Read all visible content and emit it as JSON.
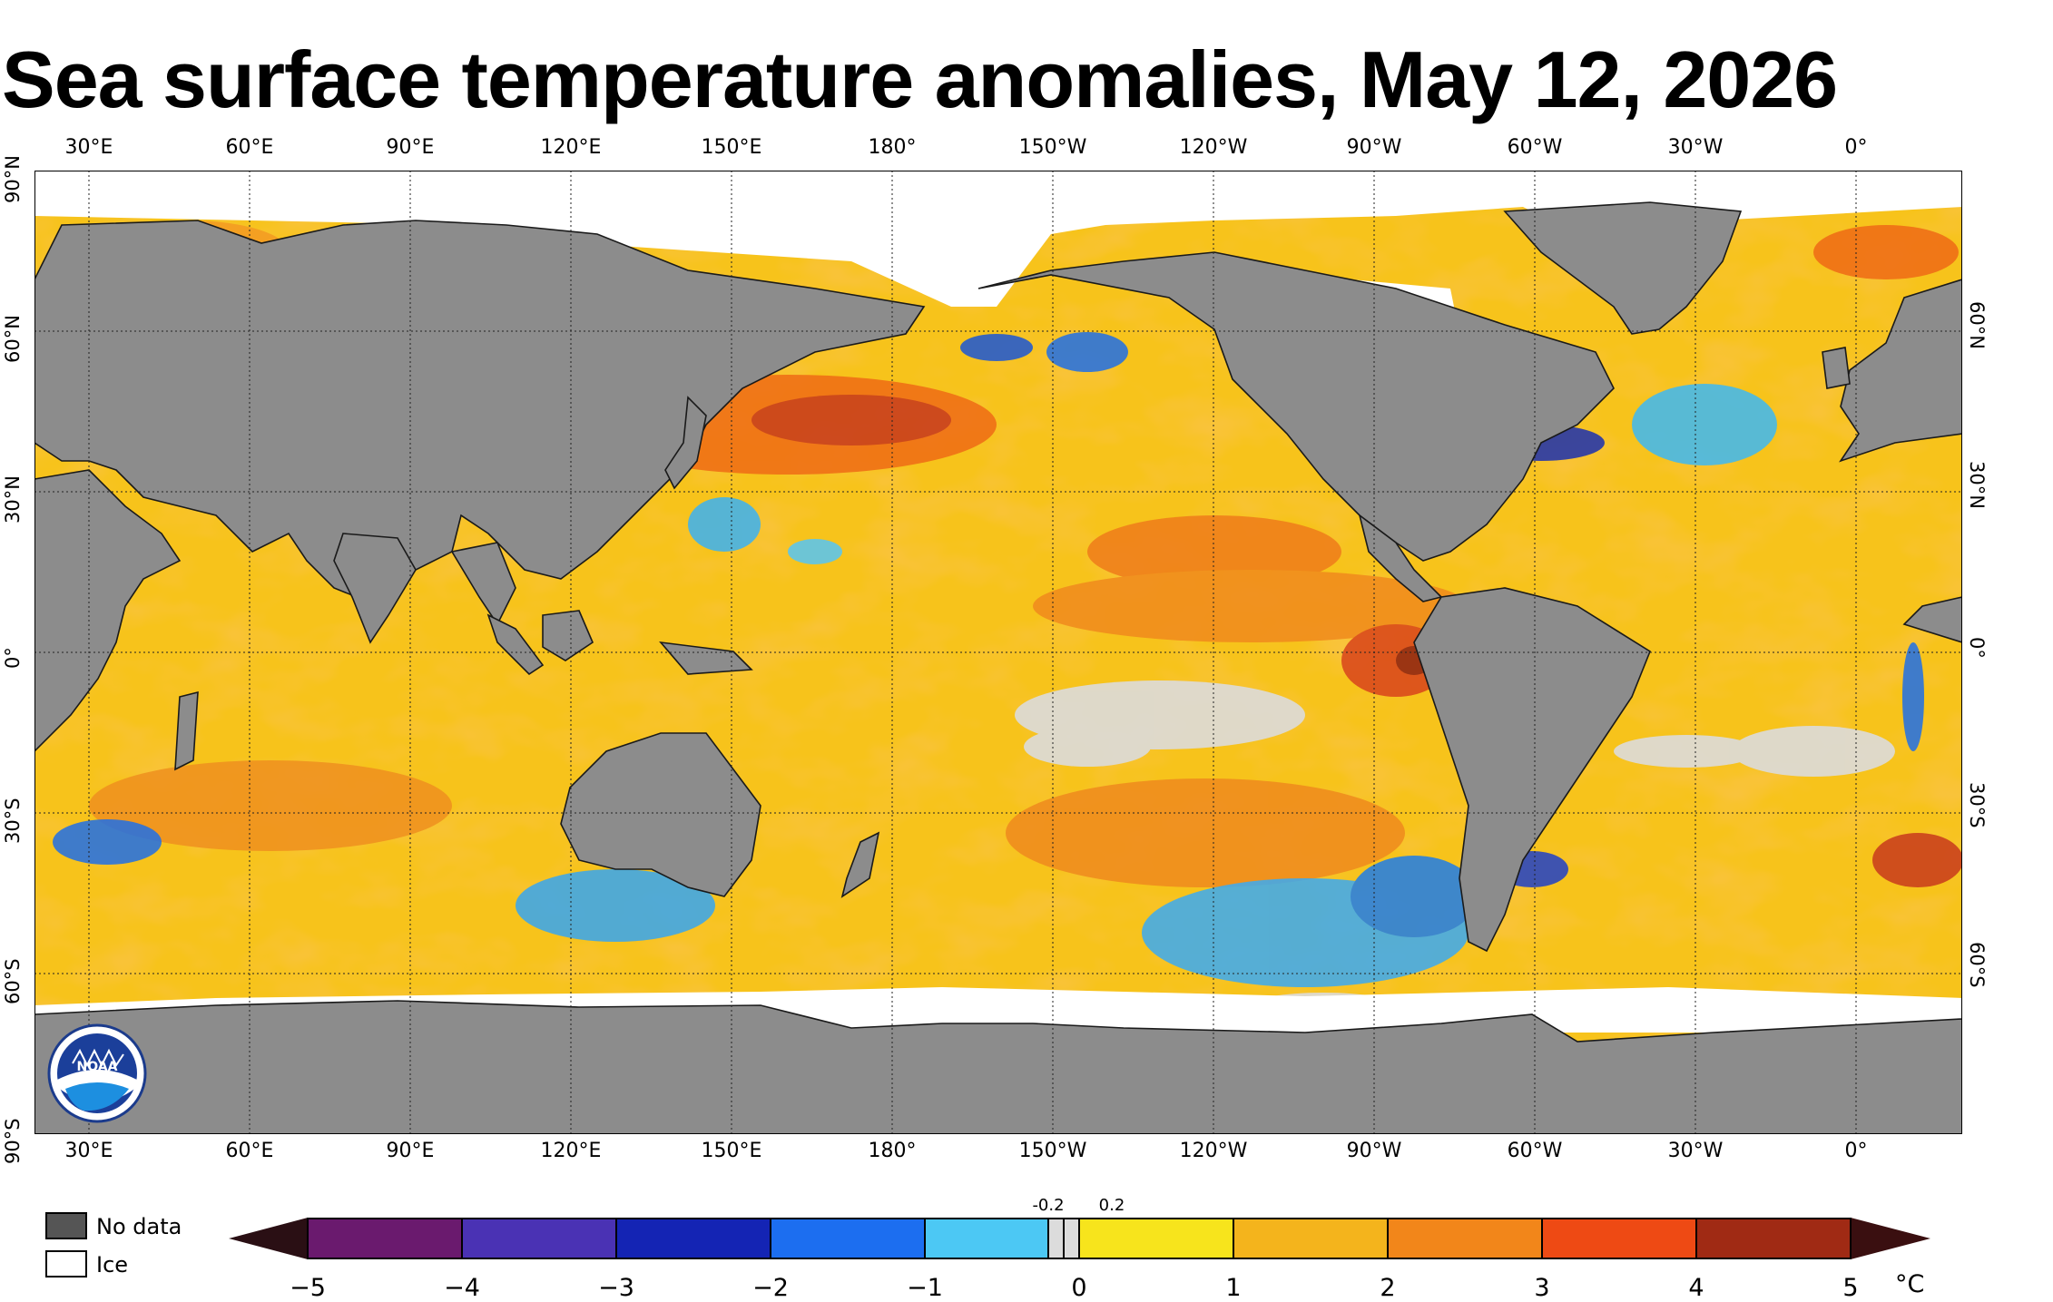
{
  "title": "Sea surface temperature anomalies, May 12, 2026",
  "lon_labels": [
    "30°E",
    "60°E",
    "90°E",
    "120°E",
    "150°E",
    "180°",
    "150°W",
    "120°W",
    "90°W",
    "60°W",
    "30°W",
    "0°"
  ],
  "lat_labels_left": [
    "90°N",
    "60°N",
    "30°N",
    "0°",
    "30°S",
    "60°S",
    "90°S"
  ],
  "lat_labels_right": [
    "60°N",
    "30°N",
    "0°",
    "30°S",
    "60°S"
  ],
  "legend": {
    "no_data": "No data",
    "ice": "Ice",
    "no_data_color": "#555555",
    "ice_color": "#ffffff"
  },
  "logo": {
    "text": "NOAA"
  },
  "colorbar": {
    "ticks": [
      "−5",
      "−4",
      "−3",
      "−2",
      "−1",
      "0",
      "1",
      "2",
      "3",
      "4",
      "5"
    ],
    "small_labels": [
      "-0.2",
      "0.2"
    ],
    "unit": "°C"
  },
  "colors": {
    "land": "#8c8c8c",
    "ocean_base": "#f7c31b",
    "neutral": "#dcdcdc",
    "cold": "#1e8fff",
    "warm": "#f07a18"
  }
}
